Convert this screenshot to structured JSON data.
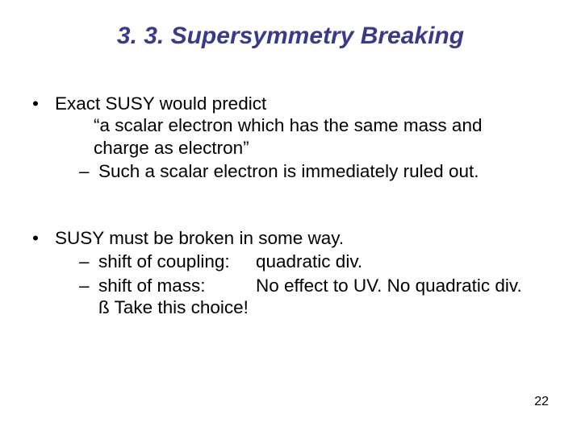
{
  "title": "3. 3. Supersymmetry Breaking",
  "section1": {
    "lead": "Exact SUSY would predict",
    "quote1": "“a scalar electron which has the same mass and",
    "quote2": "charge as electron”",
    "dash1": "Such a scalar electron is immediately ruled out."
  },
  "section2": {
    "lead": "SUSY must be broken in some way.",
    "dash1_l": "shift of coupling:",
    "dash1_r": "quadratic div.",
    "dash2_l": "shift of mass:",
    "dash2_r": "No effect to UV.  No quadratic div.",
    "arrow": "ß Take this choice!"
  },
  "page": "22"
}
